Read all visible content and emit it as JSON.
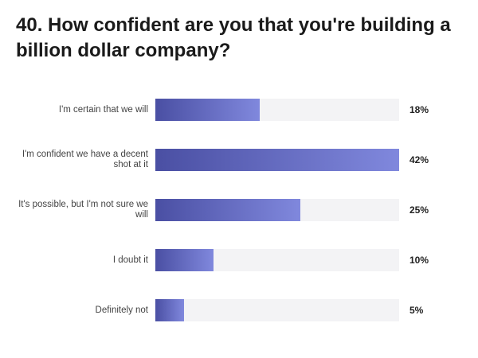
{
  "chart_data": {
    "type": "bar",
    "orientation": "horizontal",
    "title": "40. How confident are you that you're building a billion dollar company?",
    "categories": [
      "I'm certain that we will",
      "I'm confident we have a decent shot at it",
      "It's possible, but I'm not sure we will",
      "I doubt it",
      "Definitely not"
    ],
    "values": [
      18,
      42,
      25,
      10,
      5
    ],
    "value_labels": [
      "18%",
      "42%",
      "25%",
      "10%",
      "5%"
    ],
    "xlim": [
      0,
      42
    ],
    "colors": {
      "bar_start": "#4a4fa3",
      "bar_end": "#8088dd",
      "track": "#f3f3f5"
    }
  }
}
